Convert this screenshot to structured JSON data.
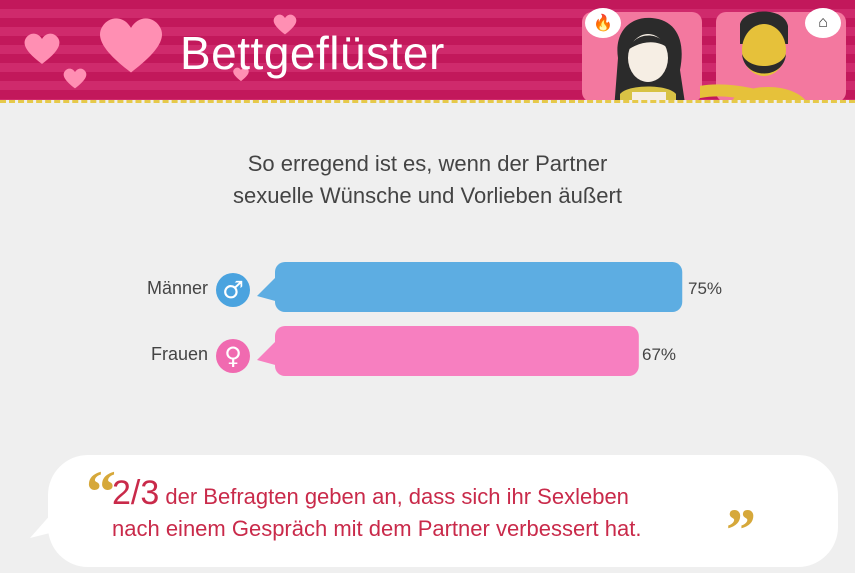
{
  "header": {
    "title": "Bettgeflüster",
    "bubble_left_icon": "flame-icon",
    "bubble_right_icon": "lingerie-icon"
  },
  "colors": {
    "header_pink": "#c2185b",
    "male_blue": "#5dade2",
    "female_pink": "#f77fc0",
    "quote_red": "#c92a4a",
    "quote_gold": "#d6a83a"
  },
  "chart_data": {
    "type": "bar",
    "orientation": "horizontal",
    "title": "So erregend ist es, wenn der Partner sexuelle Wünsche und Vorlieben äußert",
    "title_lines": [
      "So erregend ist es, wenn der Partner",
      "sexuelle Wünsche und Vorlieben äußert"
    ],
    "categories": [
      "Männer",
      "Frauen"
    ],
    "values": [
      75,
      67
    ],
    "value_labels": [
      "75%",
      "67%"
    ],
    "category_icons": [
      "male-symbol-icon",
      "female-symbol-icon"
    ],
    "xlim": [
      0,
      100
    ],
    "grid": false
  },
  "quote": {
    "highlight": "2/3",
    "line1": "der Befragten geben an, dass sich ihr Sexleben",
    "line2": "nach einem Gespräch mit dem Partner verbessert hat."
  }
}
